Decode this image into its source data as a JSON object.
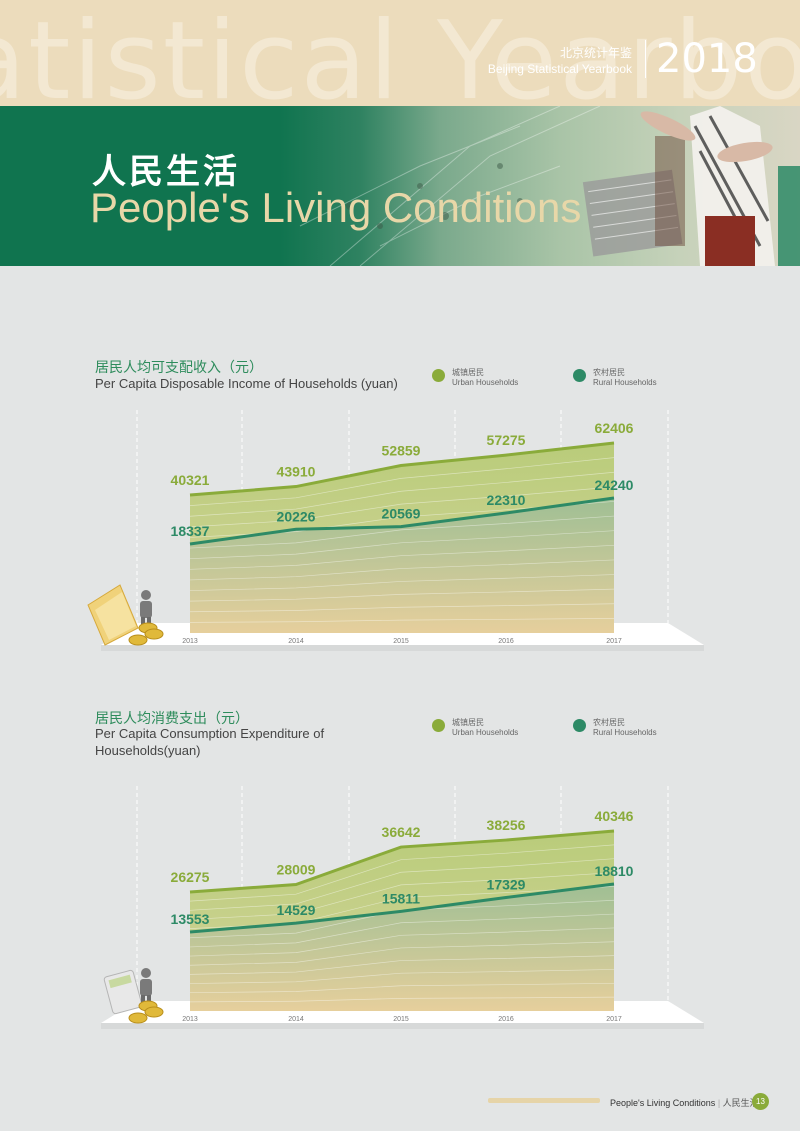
{
  "header": {
    "watermark": "atistical Yearbook",
    "yearbook_cn": "北京统计年鉴",
    "yearbook_en": "Beijing Statistical Yearbook",
    "year": "2018"
  },
  "section": {
    "title_cn": "人民生活",
    "title_en": "People's Living Conditions"
  },
  "colors": {
    "urban": "#8aab3a",
    "rural": "#2d8a66",
    "banner": "#10744f",
    "title_cn": "#2e8c5c"
  },
  "legend": {
    "urban_cn": "城镇居民",
    "urban_en": "Urban Households",
    "rural_cn": "农村居民",
    "rural_en": "Rural Households"
  },
  "chart_data": [
    {
      "type": "area",
      "title_cn": "居民人均可支配收入（元）",
      "title_en": "Per Capita Disposable Income of Households (yuan)",
      "icon": "documents-coins-person-icon",
      "x": [
        "2013",
        "2014",
        "2015",
        "2016",
        "2017"
      ],
      "series": [
        {
          "name": "Urban Households",
          "values": [
            40321,
            43910,
            52859,
            57275,
            62406
          ]
        },
        {
          "name": "Rural Households",
          "values": [
            18337,
            20226,
            20569,
            22310,
            24240
          ]
        }
      ]
    },
    {
      "type": "area",
      "title_cn": "居民人均消费支出（元）",
      "title_en": "Per Capita Consumption Expenditure  of Households(yuan)",
      "icon": "calculator-coins-person-icon",
      "x": [
        "2013",
        "2014",
        "2015",
        "2016",
        "2017"
      ],
      "series": [
        {
          "name": "Urban Households",
          "values": [
            26275,
            28009,
            36642,
            38256,
            40346
          ]
        },
        {
          "name": "Rural Households",
          "values": [
            13553,
            14529,
            15811,
            17329,
            18810
          ]
        }
      ]
    }
  ],
  "footer": {
    "label_en": "People's Living Conditions",
    "label_cn": "人民生活",
    "page": "13"
  }
}
